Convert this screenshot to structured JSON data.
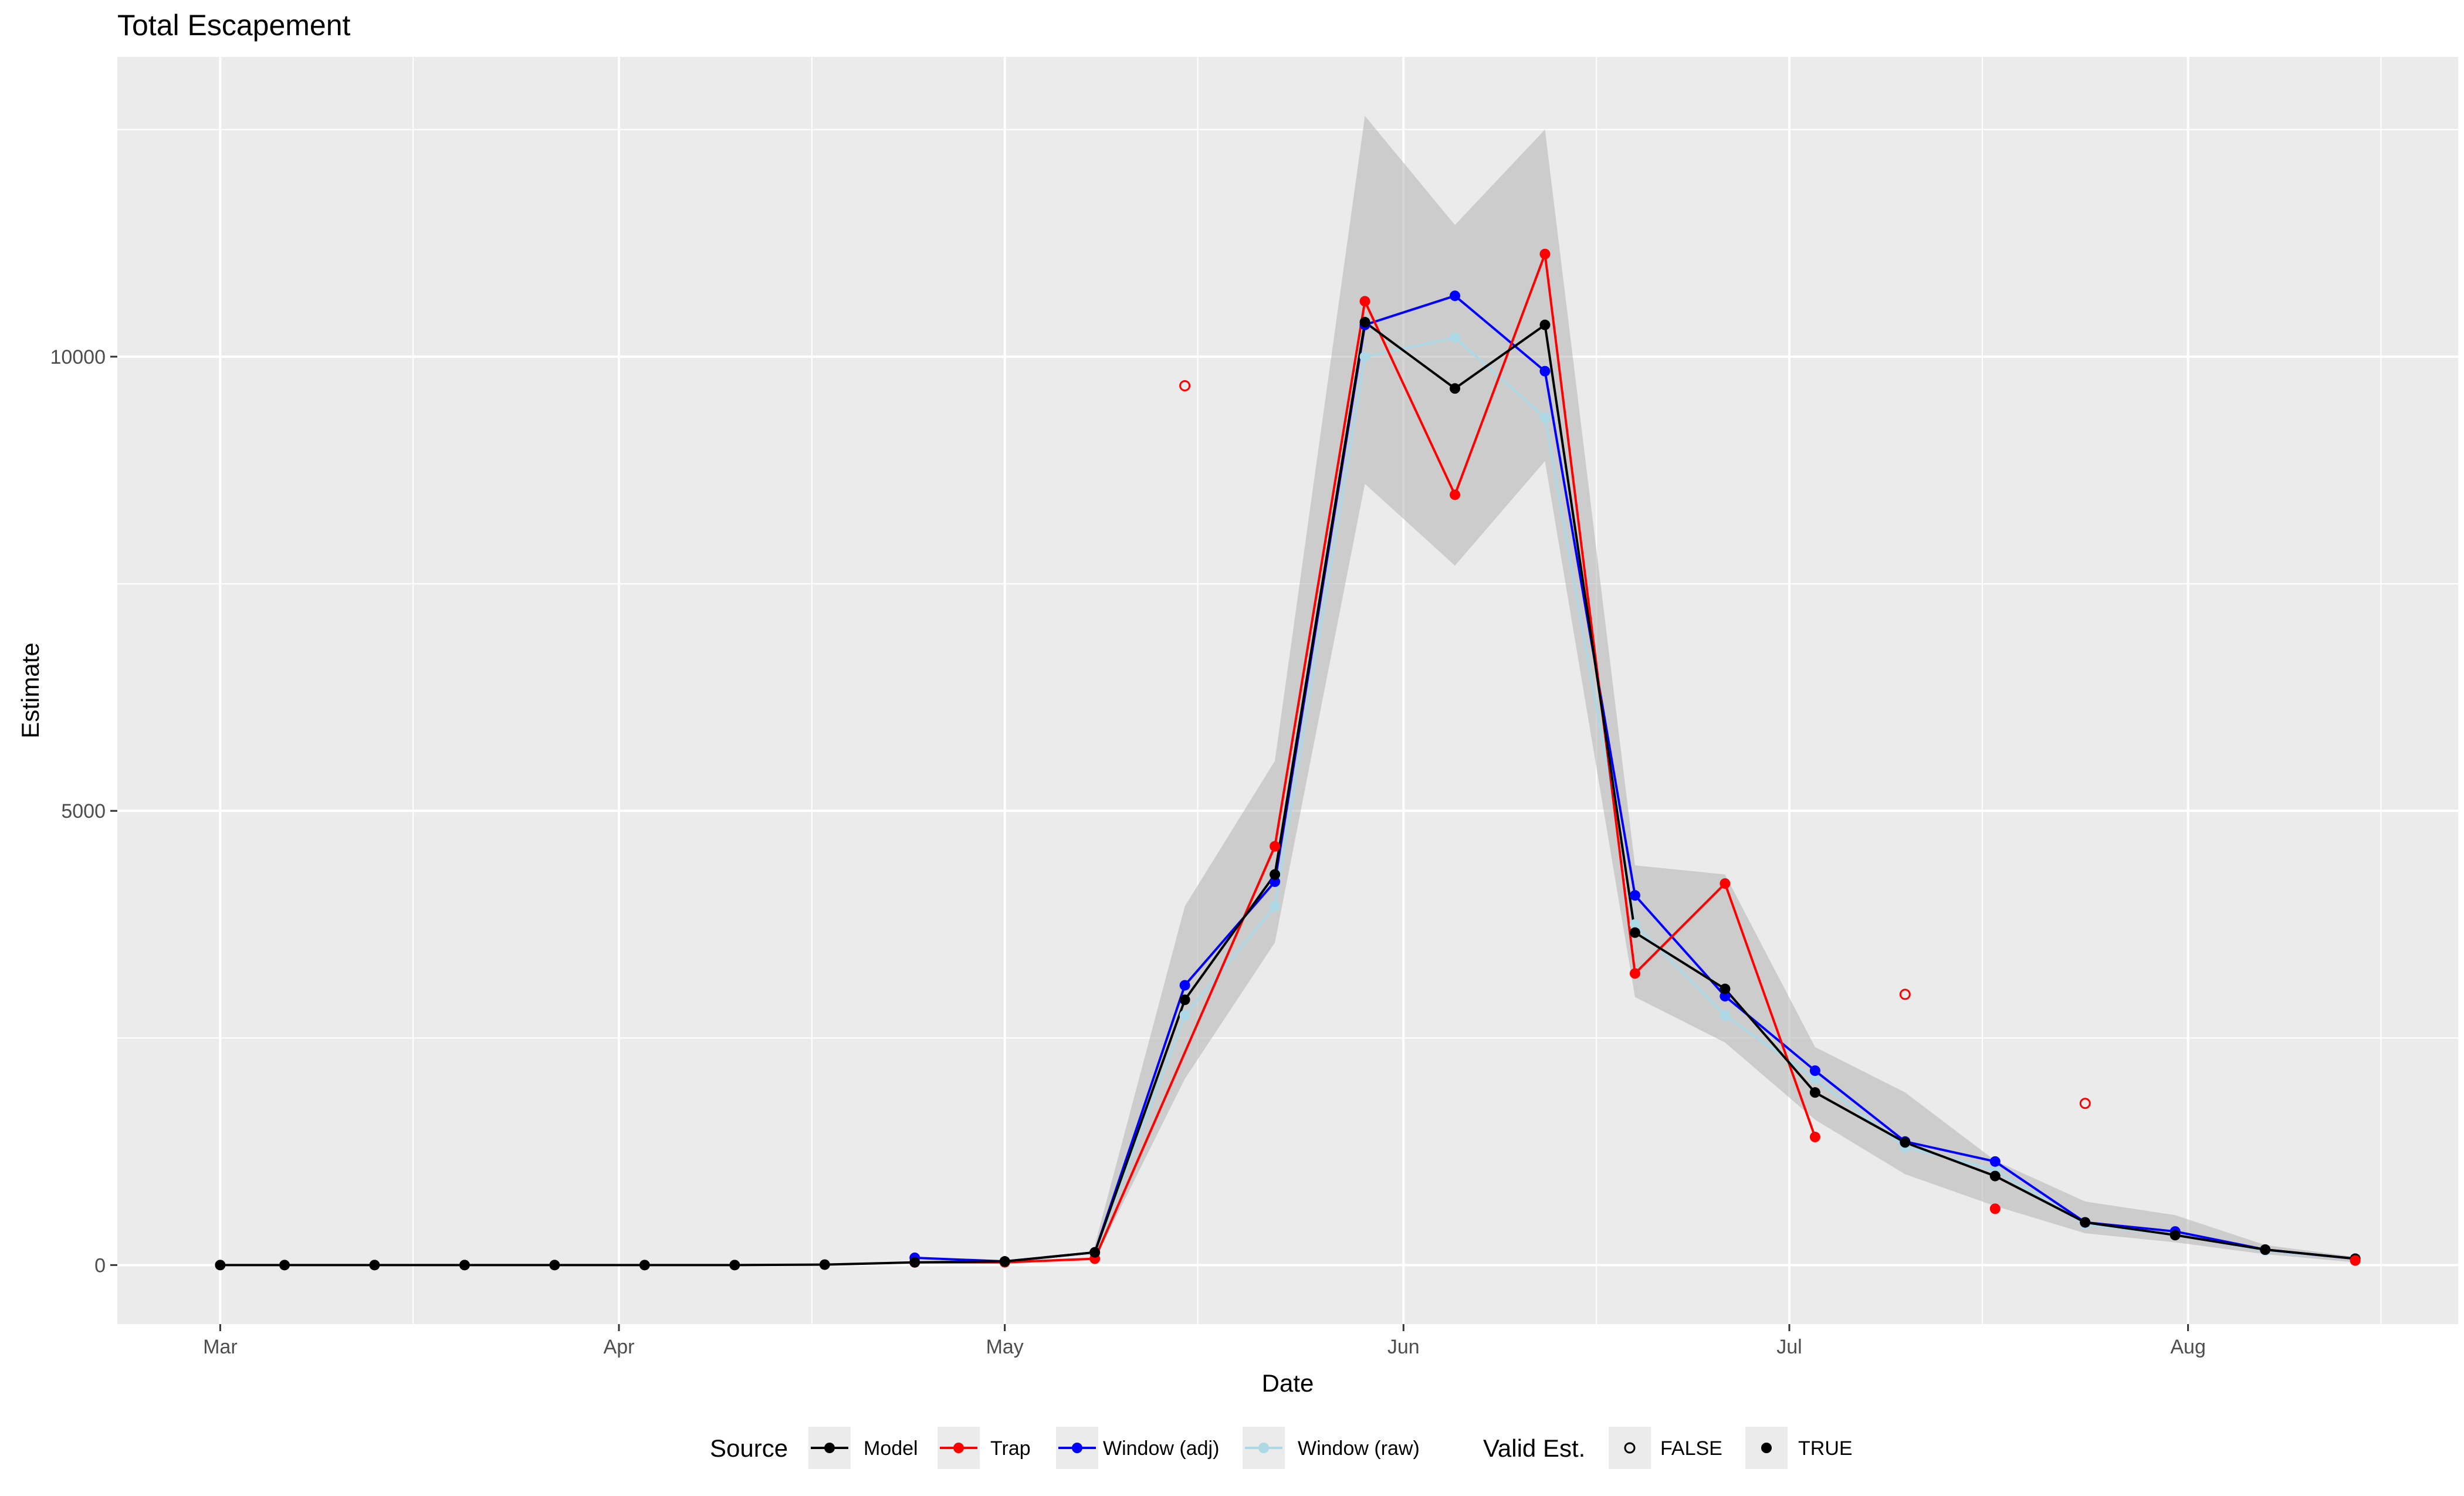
{
  "chart_data": {
    "type": "line",
    "title": "Total Escapement",
    "xlabel": "Date",
    "ylabel": "Estimate",
    "x_ticks": [
      "Mar",
      "Apr",
      "May",
      "Jun",
      "Jul",
      "Aug"
    ],
    "x_tick_dates": [
      "2020-03-01",
      "2020-04-01",
      "2020-05-01",
      "2020-06-01",
      "2020-07-01",
      "2020-08-01"
    ],
    "y_ticks": [
      0,
      5000,
      10000
    ],
    "xlim": [
      "2020-02-22",
      "2020-08-22"
    ],
    "ylim": [
      -650,
      13300
    ],
    "grid": true,
    "legend_position": "bottom",
    "legend": {
      "source_title": "Source",
      "valid_title": "Valid Est.",
      "valid_false": "FALSE",
      "valid_true": "TRUE"
    },
    "ribbon": {
      "x": [
        "2020-05-08",
        "2020-05-15",
        "2020-05-22",
        "2020-05-29",
        "2020-06-05",
        "2020-06-12",
        "2020-06-19",
        "2020-06-26",
        "2020-07-03",
        "2020-07-10",
        "2020-07-17",
        "2020-07-24",
        "2020-07-31",
        "2020-08-07",
        "2020-08-14"
      ],
      "lower": [
        60,
        2050,
        3550,
        8600,
        7700,
        8850,
        2950,
        2450,
        1600,
        1000,
        650,
        350,
        250,
        120,
        30
      ],
      "upper": [
        220,
        3950,
        5550,
        12650,
        11450,
        12500,
        4400,
        4300,
        2400,
        1900,
        1150,
        700,
        550,
        220,
        90
      ]
    },
    "series": [
      {
        "name": "Model",
        "color": "#000000",
        "x": [
          "2020-03-01",
          "2020-03-06",
          "2020-03-13",
          "2020-03-20",
          "2020-03-27",
          "2020-04-03",
          "2020-04-10",
          "2020-04-17",
          "2020-04-24",
          "2020-05-01",
          "2020-05-08",
          "2020-05-15",
          "2020-05-22",
          "2020-05-29",
          "2020-06-05",
          "2020-06-12",
          "2020-06-19",
          "2020-06-26",
          "2020-07-03",
          "2020-07-10",
          "2020-07-17",
          "2020-07-24",
          "2020-07-31",
          "2020-08-07",
          "2020-08-14"
        ],
        "y": [
          0,
          0,
          0,
          0,
          0,
          0,
          0,
          5,
          30,
          40,
          140,
          2920,
          4300,
          10380,
          9650,
          10350,
          3660,
          3040,
          1900,
          1350,
          980,
          470,
          330,
          170,
          70
        ]
      },
      {
        "name": "Trap",
        "color": "#ff0000",
        "x": [
          "2020-04-24",
          "2020-05-01",
          "2020-05-08",
          "2020-05-22",
          "2020-05-29",
          "2020-06-05",
          "2020-06-12",
          "2020-06-19",
          "2020-06-26",
          "2020-07-03"
        ],
        "y": [
          30,
          30,
          70,
          4610,
          10610,
          8480,
          11130,
          3210,
          4200,
          1410
        ]
      },
      {
        "name": "Window (adj)",
        "color": "#0000ff",
        "x": [
          "2020-04-24",
          "2020-05-01",
          "2020-05-08",
          "2020-05-15",
          "2020-05-22",
          "2020-05-29",
          "2020-06-05",
          "2020-06-12",
          "2020-06-19",
          "2020-06-26",
          "2020-07-03",
          "2020-07-10",
          "2020-07-17",
          "2020-07-24",
          "2020-07-31",
          "2020-08-07",
          "2020-08-14"
        ],
        "y": [
          80,
          40,
          140,
          3080,
          4220,
          10350,
          10670,
          9840,
          4070,
          2960,
          2140,
          1360,
          1140,
          470,
          370,
          170,
          70
        ]
      },
      {
        "name": "Window (raw)",
        "color": "#add8e6",
        "x": [
          "2020-05-08",
          "2020-05-15",
          "2020-05-22",
          "2020-05-29",
          "2020-06-05",
          "2020-06-12",
          "2020-06-19",
          "2020-06-26",
          "2020-07-03",
          "2020-07-10",
          "2020-07-17",
          "2020-07-24",
          "2020-07-31",
          "2020-08-07",
          "2020-08-14"
        ],
        "y": [
          130,
          2750,
          3950,
          10000,
          10210,
          9330,
          3750,
          2750,
          2050,
          1300,
          1050,
          450,
          330,
          160,
          70
        ]
      }
    ],
    "invalid_points": {
      "series": "Trap",
      "color": "#ff0000",
      "x": [
        "2020-05-15",
        "2020-07-10",
        "2020-07-24"
      ],
      "y": [
        9680,
        2980,
        1780
      ]
    },
    "extra_valid_points": {
      "series": "Trap",
      "color": "#ff0000",
      "x": [
        "2020-07-17",
        "2020-08-14"
      ],
      "y": [
        620,
        50
      ]
    }
  }
}
